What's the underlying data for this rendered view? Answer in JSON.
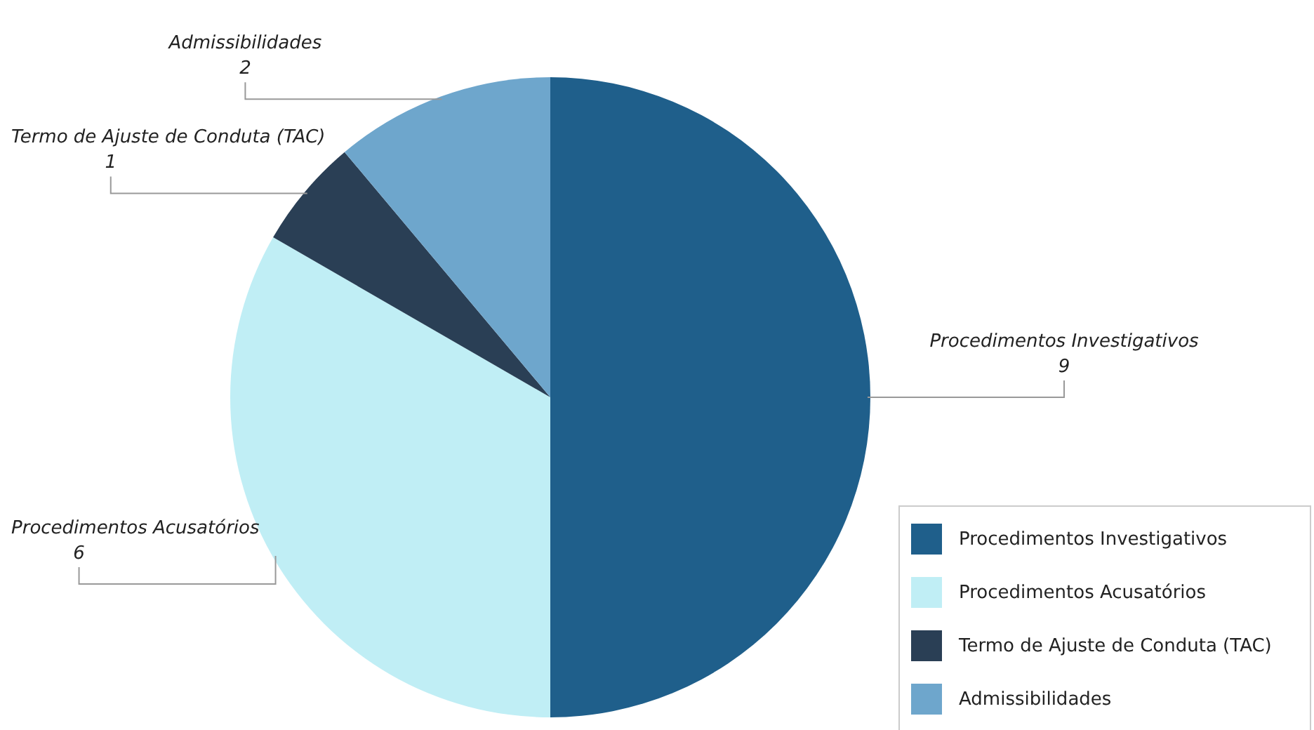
{
  "chart_data": {
    "type": "pie",
    "categories": [
      "Procedimentos Investigativos",
      "Procedimentos Acusatórios",
      "Termo de Ajuste de Conduta (TAC)",
      "Admissibilidades"
    ],
    "values": [
      9,
      6,
      1,
      2
    ],
    "colors": [
      "#1f5f8b",
      "#c0eef5",
      "#2a3f55",
      "#6ea6cc"
    ],
    "data_labels": true,
    "legend": "bottom right"
  }
}
